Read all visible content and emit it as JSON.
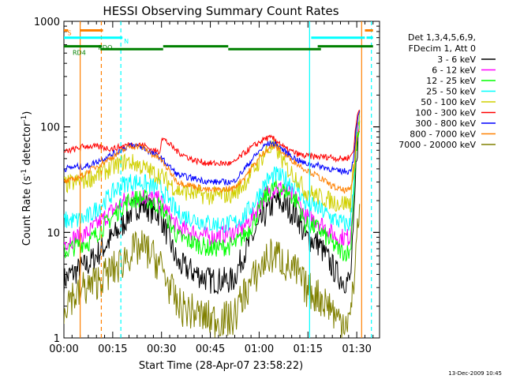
{
  "chart_data": {
    "type": "line",
    "title": "HESSI Observing Summary Count Rates",
    "xlabel": "Start Time (28-Apr-07 23:58:22)",
    "ylabel_main": "Count Rate (s",
    "ylabel_sup1": "-1",
    "ylabel_mid": " detector",
    "ylabel_sup2": "-1",
    "ylabel_end": ")",
    "yscale": "log",
    "ylim": [
      1,
      1000
    ],
    "xlim_minutes": [
      0,
      97
    ],
    "xticks": [
      {
        "t": 0,
        "label": "00:00"
      },
      {
        "t": 15,
        "label": "00:15"
      },
      {
        "t": 30,
        "label": "00:30"
      },
      {
        "t": 45,
        "label": "00:45"
      },
      {
        "t": 60,
        "label": "01:00"
      },
      {
        "t": 75,
        "label": "01:15"
      },
      {
        "t": 90,
        "label": "01:30"
      }
    ],
    "yticks": [
      {
        "v": 1,
        "label": "1"
      },
      {
        "v": 10,
        "label": "10"
      },
      {
        "v": 100,
        "label": "100"
      },
      {
        "v": 1000,
        "label": "1000"
      }
    ],
    "legend": {
      "position": "right",
      "header": [
        "Det 1,3,4,5,6,9,",
        "FDecim 1, Att 0"
      ]
    },
    "series": [
      {
        "name": "3 - 6 keV",
        "color": "#000000",
        "x": [
          0,
          2,
          4,
          6,
          7.5,
          17.5,
          20,
          23,
          25,
          27,
          29.5,
          35,
          45,
          52,
          55,
          58,
          62,
          65,
          68,
          72,
          74,
          78,
          82,
          84,
          86,
          88,
          89,
          90,
          91
        ],
        "y": [
          3.5,
          4,
          4.3,
          4.7,
          5,
          11,
          15,
          18,
          18,
          16,
          15,
          5,
          3.5,
          3.5,
          6,
          9,
          15,
          20,
          18,
          14,
          9,
          8,
          5,
          4,
          3.5,
          3.5,
          10,
          60,
          100
        ]
      },
      {
        "name": "6 - 12 keV",
        "color": "#ff00ff",
        "x": [
          0,
          2,
          4,
          6,
          7.5,
          17.5,
          20,
          23,
          25,
          27,
          29.5,
          35,
          45,
          52,
          55,
          58,
          62,
          65,
          68,
          72,
          74,
          78,
          82,
          84,
          86,
          88,
          89,
          90,
          91
        ],
        "y": [
          8,
          8.5,
          9,
          9.5,
          10,
          19,
          21,
          22,
          22,
          21,
          20,
          11,
          9,
          10,
          11,
          14,
          23,
          27,
          25,
          20,
          14,
          13,
          10,
          9,
          9,
          9,
          25,
          80,
          110
        ]
      },
      {
        "name": "12 - 25 keV",
        "color": "#00ff00",
        "x": [
          0,
          2,
          4,
          6,
          7.5,
          17.5,
          20,
          23,
          25,
          27,
          29.5,
          35,
          45,
          52,
          55,
          58,
          62,
          65,
          68,
          72,
          74,
          78,
          82,
          84,
          86,
          88,
          89,
          90,
          91
        ],
        "y": [
          6.5,
          7,
          7.5,
          8,
          8,
          17,
          20,
          21,
          21,
          19,
          18,
          9,
          7,
          7.5,
          9,
          12,
          22,
          27,
          25,
          19,
          12,
          11,
          8,
          7,
          6.5,
          6.5,
          22,
          70,
          100
        ]
      },
      {
        "name": "25 - 50 keV",
        "color": "#00ffff",
        "x": [
          0,
          2,
          4,
          6,
          7.5,
          17.5,
          20,
          23,
          25,
          27,
          29.5,
          35,
          45,
          52,
          55,
          58,
          62,
          65,
          68,
          72,
          74,
          78,
          82,
          84,
          86,
          88,
          89,
          90,
          91
        ],
        "y": [
          13,
          13,
          13,
          13.5,
          14,
          28,
          30,
          30,
          29,
          27,
          27,
          15,
          12,
          12,
          14,
          18,
          30,
          35,
          32,
          26,
          19,
          17,
          14,
          13,
          12,
          12,
          30,
          90,
          120
        ]
      },
      {
        "name": "50 - 100 keV",
        "color": "#d0d000",
        "x": [
          0,
          2,
          4,
          6,
          7.5,
          17.5,
          19,
          22,
          25,
          28,
          29.5,
          35,
          45,
          52,
          55,
          58,
          62,
          64,
          66,
          68,
          72,
          74,
          78,
          82,
          84,
          86,
          88,
          89,
          90,
          91
        ],
        "y": [
          28,
          29,
          30,
          31,
          32,
          45,
          47,
          45,
          40,
          36,
          35,
          25,
          22,
          23,
          28,
          38,
          58,
          64,
          58,
          42,
          32,
          25,
          22,
          20,
          19,
          19,
          19,
          40,
          100,
          130
        ]
      },
      {
        "name": "100 - 300 keV",
        "color": "#ff0000",
        "x": [
          0,
          2,
          4,
          6,
          7.5,
          15,
          20,
          23,
          25,
          27,
          29.5,
          30,
          35,
          40,
          45,
          52,
          55,
          58,
          62,
          64,
          66,
          68,
          72,
          74,
          78,
          82,
          84,
          86,
          88,
          89,
          90,
          91
        ],
        "y": [
          57,
          60,
          62,
          65,
          66,
          62,
          68,
          68,
          66,
          60,
          58,
          80,
          58,
          48,
          45,
          45,
          55,
          65,
          78,
          78,
          72,
          62,
          55,
          53,
          52,
          52,
          50,
          50,
          52,
          60,
          120,
          160
        ]
      },
      {
        "name": "300 - 800 keV",
        "color": "#0000ff",
        "x": [
          0,
          2,
          4,
          6,
          7.5,
          15,
          20,
          23,
          25,
          27,
          29.5,
          35,
          45,
          52,
          55,
          58,
          62,
          64,
          66,
          68,
          72,
          74,
          78,
          82,
          84,
          86,
          88,
          89,
          90,
          91
        ],
        "y": [
          40,
          41,
          42,
          42,
          43,
          55,
          66,
          66,
          62,
          56,
          52,
          35,
          30,
          30,
          38,
          50,
          68,
          70,
          66,
          58,
          48,
          45,
          43,
          40,
          38,
          38,
          38,
          50,
          110,
          140
        ]
      },
      {
        "name": "800 - 7000 keV",
        "color": "#ff8000",
        "x": [
          0,
          2,
          4,
          6,
          7.5,
          15,
          20,
          23,
          25,
          27,
          29.5,
          35,
          45,
          52,
          55,
          58,
          62,
          64,
          66,
          68,
          72,
          74,
          78,
          82,
          84,
          86,
          88,
          89,
          90,
          91
        ],
        "y": [
          30,
          31,
          33,
          35,
          38,
          52,
          65,
          66,
          62,
          55,
          50,
          30,
          25,
          26,
          32,
          42,
          60,
          66,
          62,
          54,
          44,
          40,
          34,
          28,
          26,
          25,
          25,
          35,
          80,
          100
        ]
      },
      {
        "name": "7000 - 20000 keV",
        "color": "#808000",
        "x": [
          0,
          2,
          4,
          6,
          7.5,
          17.5,
          19,
          23,
          25,
          27,
          29.5,
          35,
          45,
          52,
          55,
          58,
          62,
          64,
          66,
          68,
          72,
          74,
          78,
          82,
          84,
          86,
          88,
          89,
          90,
          91
        ],
        "y": [
          2,
          2.5,
          2.5,
          3,
          3,
          5,
          6,
          7,
          7,
          6,
          5,
          2,
          1.5,
          1.5,
          2.5,
          3.5,
          5.5,
          6,
          6,
          5,
          4,
          3,
          2.5,
          2,
          1.5,
          1.5,
          1.5,
          3,
          10,
          15
        ]
      }
    ],
    "annotations": [
      {
        "text": "S",
        "color": "#ff8000",
        "t": 1.7,
        "v": 780
      },
      {
        "text": "N",
        "color": "#00ffff",
        "t": 19.2,
        "v": 650
      },
      {
        "text": "RDO",
        "color": "#008000",
        "t": 12.7,
        "v": 565
      },
      {
        "text": "RD4",
        "color": "#008000",
        "t": 4.7,
        "v": 505
      }
    ],
    "state_bars": [
      {
        "name": "S",
        "color": "#ff8000",
        "v": 820,
        "segments": [
          [
            0,
            1.3
          ],
          [
            5,
            12
          ],
          [
            92.5,
            95
          ]
        ]
      },
      {
        "name": "N",
        "color": "#00ffff",
        "v": 700,
        "segments": [
          [
            0,
            18
          ],
          [
            76,
            92.5
          ],
          [
            93,
            95
          ]
        ]
      },
      {
        "name": "RDO",
        "color": "#008000",
        "v": 580,
        "segments": [
          [
            0,
            11.7
          ],
          [
            30.5,
            50.5
          ],
          [
            78,
            95
          ]
        ]
      },
      {
        "name": "RD4",
        "color": "#008000",
        "v": 545,
        "segments": [
          [
            11.2,
            30.5
          ],
          [
            50.5,
            79
          ]
        ]
      }
    ],
    "vlines": [
      {
        "t": 5,
        "color": "#ff8000",
        "style": "solid"
      },
      {
        "t": 11.5,
        "color": "#ff8000",
        "style": "dashed"
      },
      {
        "t": 17.5,
        "color": "#00ffff",
        "style": "dashed"
      },
      {
        "t": 75.5,
        "color": "#00ffff",
        "style": "solid"
      },
      {
        "t": 91.5,
        "color": "#ff8000",
        "style": "solid"
      },
      {
        "t": 94.5,
        "color": "#00ffff",
        "style": "dashed"
      }
    ],
    "footer": "13-Dec-2009 10:45"
  }
}
